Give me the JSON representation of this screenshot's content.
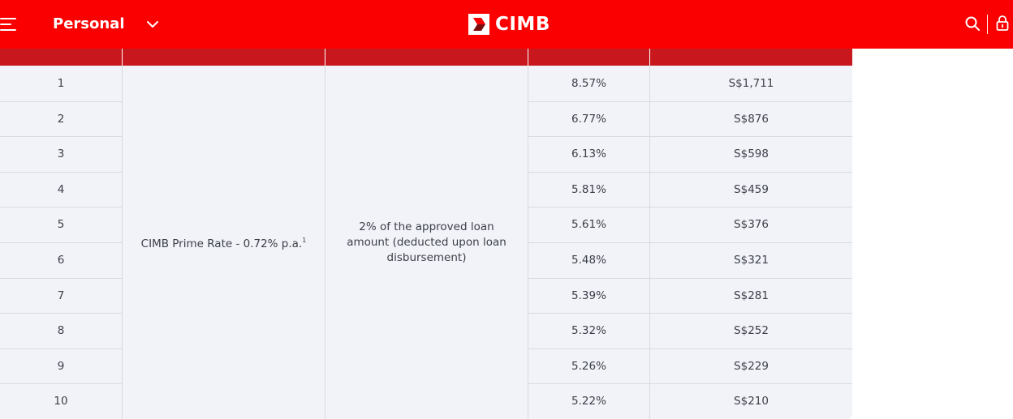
{
  "header": {
    "segment": "Personal",
    "brand": "CIMB",
    "background_color": "#fb0000"
  },
  "icons": [
    "menu-icon",
    "chevron-down-icon",
    "cimb-logo-mark",
    "search-icon",
    "lock-icon"
  ],
  "table": {
    "header_color": "#c8181e",
    "body_color": "#f2f3f8",
    "rate_basis": "CIMB Prime Rate - 0.72% p.a.",
    "rate_footnote": "1",
    "processing_fee": "2% of the approved loan amount (deducted upon loan disbursement)",
    "rows": [
      {
        "tenure": "1",
        "eir": "8.57%",
        "monthly": "S$1,711"
      },
      {
        "tenure": "2",
        "eir": "6.77%",
        "monthly": "S$876"
      },
      {
        "tenure": "3",
        "eir": "6.13%",
        "monthly": "S$598"
      },
      {
        "tenure": "4",
        "eir": "5.81%",
        "monthly": "S$459"
      },
      {
        "tenure": "5",
        "eir": "5.61%",
        "monthly": "S$376"
      },
      {
        "tenure": "6",
        "eir": "5.48%",
        "monthly": "S$321"
      },
      {
        "tenure": "7",
        "eir": "5.39%",
        "monthly": "S$281"
      },
      {
        "tenure": "8",
        "eir": "5.32%",
        "monthly": "S$252"
      },
      {
        "tenure": "9",
        "eir": "5.26%",
        "monthly": "S$229"
      },
      {
        "tenure": "10",
        "eir": "5.22%",
        "monthly": "S$210"
      }
    ]
  }
}
